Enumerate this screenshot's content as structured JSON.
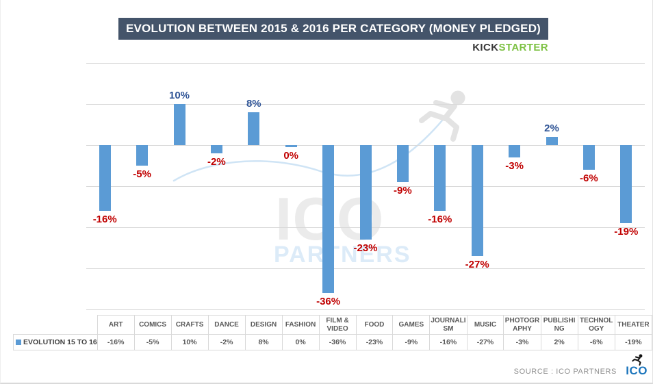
{
  "title": "EVOLUTION BETWEEN 2015 & 2016 PER CATEGORY (MONEY PLEDGED)",
  "brand": {
    "kick": "KICK",
    "starter": "STARTER"
  },
  "colors": {
    "title_bg": "#44546A",
    "title_text": "#FFFFFF",
    "bar": "#5B9BD5",
    "positive_label": "#2F5496",
    "negative_label": "#C00000",
    "grid": "#D9D9D9",
    "kick": "#3A3A3A",
    "starter": "#7CC142",
    "watermark_gray": "#EBEBEB",
    "watermark_blue": "#DCEBF8",
    "swoosh": "#CFE4F5",
    "runner_gray": "#E3E3E3",
    "ico_logo_blue": "#1B75BC",
    "table_text": "#595959"
  },
  "chart_data": {
    "type": "bar",
    "title": "EVOLUTION BETWEEN 2015 & 2016 PER CATEGORY (MONEY PLEDGED)",
    "series_name": "EVOLUTION 15 TO 16",
    "categories": [
      "ART",
      "COMICS",
      "CRAFTS",
      "DANCE",
      "DESIGN",
      "FASHION",
      "FILM & VIDEO",
      "FOOD",
      "GAMES",
      "JOURNALISM",
      "MUSIC",
      "PHOTOGRAPHY",
      "PUBLISHING",
      "TECHNOLOGY",
      "THEATER"
    ],
    "values": [
      -16,
      -5,
      10,
      -2,
      8,
      0,
      -36,
      -23,
      -9,
      -16,
      -27,
      -3,
      2,
      -6,
      -19
    ],
    "data_labels": [
      "-16%",
      "-5%",
      "10%",
      "-2%",
      "8%",
      "0%",
      "-36%",
      "-23%",
      "-9%",
      "-16%",
      "-27%",
      "-3%",
      "2%",
      "-6%",
      "-19%"
    ],
    "ylabel": "",
    "xlabel": "",
    "ylim": [
      -40,
      20
    ],
    "gridline_step": 10,
    "grid": true,
    "legend_position": "bottom-table"
  },
  "table": {
    "legend_label": "EVOLUTION 15 TO 16",
    "headers": [
      "ART",
      "COMICS",
      "CRAFTS",
      "DANCE",
      "DESIGN",
      "FASHION",
      "FILM &\nVIDEO",
      "FOOD",
      "GAMES",
      "JOURNALI\nSM",
      "MUSIC",
      "PHOTOGR\nAPHY",
      "PUBLISHI\nNG",
      "TECHNOL\nOGY",
      "THEATER"
    ],
    "values": [
      "-16%",
      "-5%",
      "10%",
      "-2%",
      "8%",
      "0%",
      "-36%",
      "-23%",
      "-9%",
      "-16%",
      "-27%",
      "-3%",
      "2%",
      "-6%",
      "-19%"
    ]
  },
  "watermark": {
    "line1": "ICO",
    "line2": "PARTNERS"
  },
  "footer": {
    "source": "SOURCE : ICO PARTNERS",
    "logo": "ICO"
  }
}
